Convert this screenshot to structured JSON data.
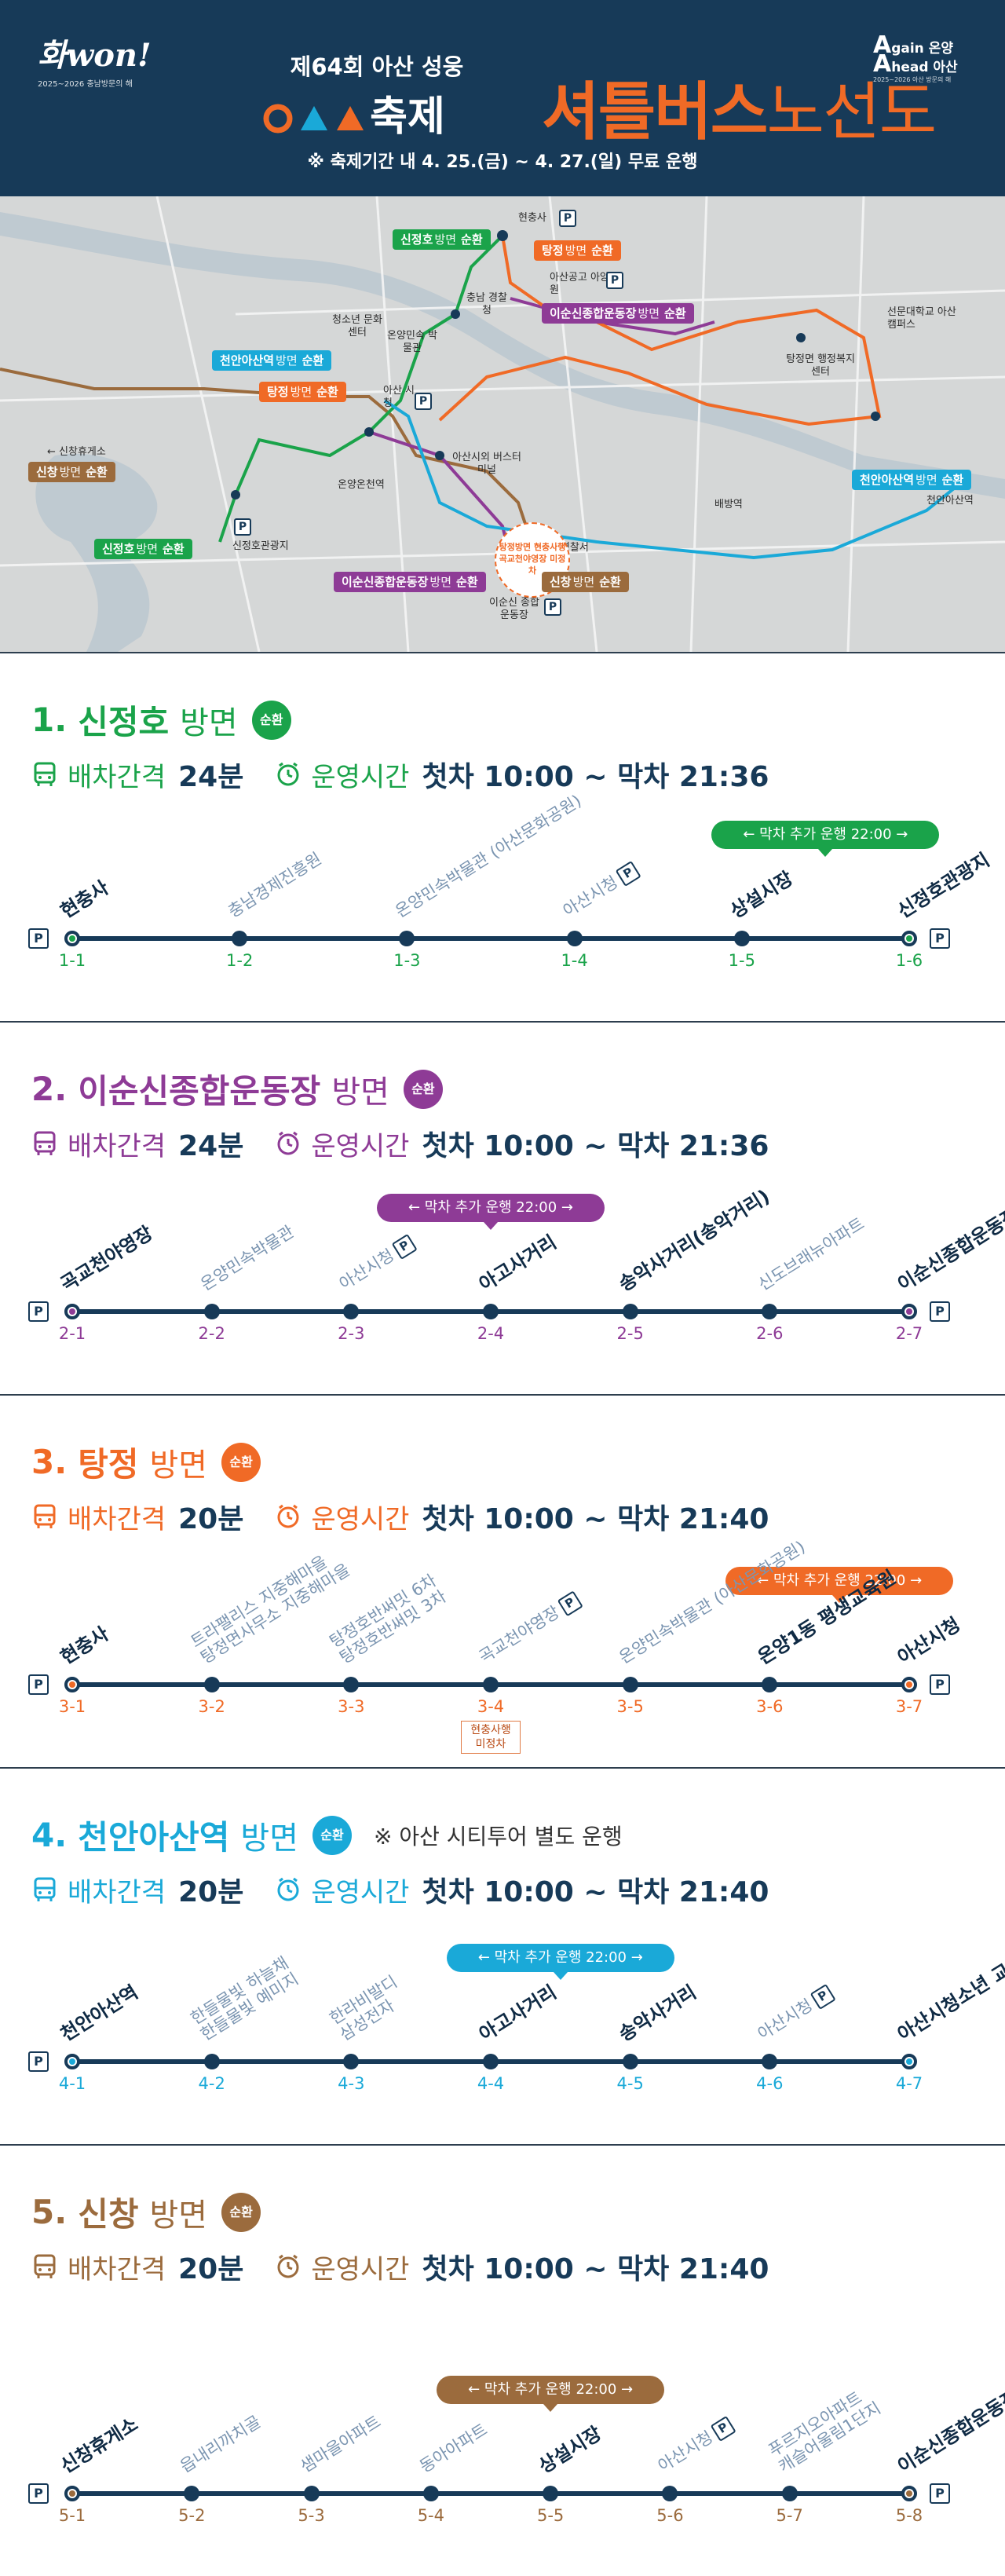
{
  "header": {
    "logo_left": "화won!",
    "logo_left_caption": "2025~2026 충남방문의 해",
    "logo_right_l1": "gain 온양",
    "logo_right_l2": "head 아산",
    "logo_right_caption": "2025~2026 아산 방문의 해",
    "subtitle": "제64회 아산 성웅",
    "festival_suffix": "축제",
    "title_bold": "셔틀버스",
    "title_thin": "노선도",
    "notice": "※ 축제기간 내 4. 25.(금) ~ 4. 27.(일) 무료 운행",
    "colors": {
      "bg": "#173a58",
      "accent": "#f06a26"
    }
  },
  "map": {
    "places": [
      "현충사",
      "충남 경찰청",
      "아산공고 아양원",
      "청소년 문화센터",
      "온양민속 박물관",
      "아산 시청",
      "아산시외 버스터미널",
      "온양온천역",
      "신정호관광지",
      "← 신창휴게소",
      "배방역",
      "천안아산역",
      "탕정면 행정복지센터",
      "선문대학교 아산캠퍼스",
      "아산경찰서",
      "이순신 종합운동장"
    ],
    "stamp": "탕정방면 현충사행 곡교천야영장 미정차",
    "tags": [
      {
        "name": "신정호",
        "dir": "방면",
        "cir": "순환"
      },
      {
        "name": "탕정",
        "dir": "방면",
        "cir": "순환"
      },
      {
        "name": "이순신종합운동장",
        "dir": "방면",
        "cir": "순환"
      },
      {
        "name": "천안아산역",
        "dir": "방면",
        "cir": "순환"
      },
      {
        "name": "탕정",
        "dir": "방면",
        "cir": "순환"
      },
      {
        "name": "신창",
        "dir": "방면",
        "cir": "순환"
      },
      {
        "name": "신정호",
        "dir": "방면",
        "cir": "순환"
      },
      {
        "name": "천안아산역",
        "dir": "방면",
        "cir": "순환"
      },
      {
        "name": "이순신종합운동장",
        "dir": "방면",
        "cir": "순환"
      },
      {
        "name": "신창",
        "dir": "방면",
        "cir": "순환"
      }
    ],
    "parking": "P"
  },
  "labels": {
    "interval": "배차간격",
    "hours": "운영시간",
    "circular": "순환",
    "direction": "방면",
    "parking": "P"
  },
  "routes": [
    {
      "num": "1.",
      "name": "신정호",
      "color": "#1aa34a",
      "interval": "24분",
      "hours": "첫차 10:00 ~ 막차 21:36",
      "note": "",
      "extra": "← 막차 추가 운행 22:00 →",
      "stops": [
        {
          "code": "1-1",
          "name": "현충사",
          "bold": true,
          "p": false
        },
        {
          "code": "1-2",
          "name": "충남경제진흥원",
          "bold": false,
          "p": false
        },
        {
          "code": "1-3",
          "name": "온양민속박물관 (아산문화공원)",
          "bold": false,
          "p": false
        },
        {
          "code": "1-4",
          "name": "아산시청",
          "bold": false,
          "p": true
        },
        {
          "code": "1-5",
          "name": "상설시장",
          "bold": true,
          "p": false
        },
        {
          "code": "1-6",
          "name": "신정호관광지",
          "bold": true,
          "p": false
        }
      ]
    },
    {
      "num": "2.",
      "name": "이순신종합운동장",
      "color": "#8e3b96",
      "interval": "24분",
      "hours": "첫차 10:00 ~ 막차 21:36",
      "note": "",
      "extra": "← 막차 추가 운행 22:00 →",
      "stops": [
        {
          "code": "2-1",
          "name": "곡교천야영장",
          "bold": true,
          "p": false
        },
        {
          "code": "2-2",
          "name": "온양민속박물관",
          "bold": false,
          "p": false
        },
        {
          "code": "2-3",
          "name": "아산시청",
          "bold": false,
          "p": true
        },
        {
          "code": "2-4",
          "name": "아고사거리",
          "bold": true,
          "p": false
        },
        {
          "code": "2-5",
          "name": "송악사거리(송악거리)",
          "bold": true,
          "p": false
        },
        {
          "code": "2-6",
          "name": "신도브래뉴아파트",
          "bold": false,
          "p": false
        },
        {
          "code": "2-7",
          "name": "이순신종합운동장",
          "bold": true,
          "p": false
        }
      ]
    },
    {
      "num": "3.",
      "name": "탕정",
      "color": "#f06a26",
      "interval": "20분",
      "hours": "첫차 10:00 ~ 막차 21:40",
      "note": "",
      "extra": "← 막차 추가 운행 22:00 →",
      "chip": "현충사행 미정차",
      "stops": [
        {
          "code": "3-1",
          "name": "현충사",
          "bold": true,
          "p": false
        },
        {
          "code": "3-2",
          "name": "트라팰리스 지중해마을 / 탕정면사무소 지중해마을",
          "bold": false,
          "p": false
        },
        {
          "code": "3-3",
          "name": "탕정호반써밋 6차 / 탕정호반써밋 3차",
          "bold": false,
          "p": false
        },
        {
          "code": "3-4",
          "name": "곡교천야영장",
          "bold": false,
          "p": true
        },
        {
          "code": "3-5",
          "name": "온양민속박물관 (아산문화공원)",
          "bold": false,
          "p": false
        },
        {
          "code": "3-6",
          "name": "온양1동 평생교육원",
          "bold": true,
          "p": false
        },
        {
          "code": "3-7",
          "name": "아산시청",
          "bold": true,
          "p": false
        }
      ]
    },
    {
      "num": "4.",
      "name": "천안아산역",
      "color": "#1aa9d8",
      "interval": "20분",
      "hours": "첫차 10:00 ~ 막차 21:40",
      "note": "※ 아산 시티투어 별도 운행",
      "extra": "← 막차 추가 운행 22:00 →",
      "stops": [
        {
          "code": "4-1",
          "name": "천안아산역",
          "bold": true,
          "p": false
        },
        {
          "code": "4-2",
          "name": "한들물빛 하늘채 / 한들물빛 예미지",
          "bold": false,
          "p": false
        },
        {
          "code": "4-3",
          "name": "한라비발디 / 삼성전자",
          "bold": false,
          "p": false
        },
        {
          "code": "4-4",
          "name": "아고사거리",
          "bold": true,
          "p": false
        },
        {
          "code": "4-5",
          "name": "송악사거리",
          "bold": true,
          "p": false
        },
        {
          "code": "4-6",
          "name": "아산시청",
          "bold": false,
          "p": true
        },
        {
          "code": "4-7",
          "name": "아산시청소년 교육문화센터",
          "bold": true,
          "p": false
        }
      ]
    },
    {
      "num": "5.",
      "name": "신창",
      "color": "#9b6b3d",
      "interval": "20분",
      "hours": "첫차 10:00 ~ 막차 21:40",
      "note": "",
      "extra": "← 막차 추가 운행 22:00 →",
      "stops": [
        {
          "code": "5-1",
          "name": "신창휴게소",
          "bold": true,
          "p": false
        },
        {
          "code": "5-2",
          "name": "읍내리까치골",
          "bold": false,
          "p": false
        },
        {
          "code": "5-3",
          "name": "샘마을아파트",
          "bold": false,
          "p": false
        },
        {
          "code": "5-4",
          "name": "동아아파트",
          "bold": false,
          "p": false
        },
        {
          "code": "5-5",
          "name": "상설시장",
          "bold": true,
          "p": false
        },
        {
          "code": "5-6",
          "name": "아산시청",
          "bold": false,
          "p": true
        },
        {
          "code": "5-7",
          "name": "푸르지오아파트 / 캐슬어울림1단지",
          "bold": false,
          "p": false
        },
        {
          "code": "5-8",
          "name": "이순신종합운동장",
          "bold": true,
          "p": false
        }
      ]
    }
  ]
}
